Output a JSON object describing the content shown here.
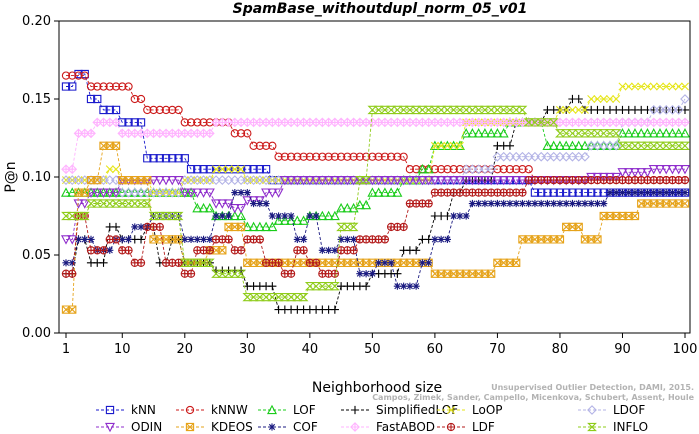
{
  "chart_data": {
    "type": "line",
    "title": "SpamBase_withoutdupl_norm_05_v01",
    "xlabel": "Neighborhood size",
    "ylabel": "P@n",
    "xlim": [
      0,
      100
    ],
    "ylim": [
      0,
      0.2
    ],
    "xticks": [
      "1",
      "10",
      "20",
      "30",
      "40",
      "50",
      "60",
      "70",
      "80",
      "90",
      "100"
    ],
    "yticks": [
      "0.00",
      "0.05",
      "0.10",
      "0.15",
      "0.20"
    ],
    "grid": false,
    "legend_position": "bottom",
    "series": [
      {
        "name": "kNN",
        "color": "#1a1acc",
        "marker": "square",
        "points": [
          [
            1,
            0.158
          ],
          [
            3,
            0.166
          ],
          [
            5,
            0.15
          ],
          [
            7,
            0.143
          ],
          [
            9,
            0.143
          ],
          [
            10,
            0.135
          ],
          [
            12,
            0.135
          ],
          [
            14,
            0.112
          ],
          [
            20,
            0.112
          ],
          [
            21,
            0.105
          ],
          [
            33,
            0.105
          ],
          [
            34,
            0.098
          ],
          [
            60,
            0.098
          ],
          [
            70,
            0.098
          ],
          [
            75,
            0.098
          ],
          [
            76,
            0.09
          ],
          [
            100,
            0.09
          ]
        ]
      },
      {
        "name": "kNNW",
        "color": "#cc1a1a",
        "marker": "circle",
        "points": [
          [
            1,
            0.165
          ],
          [
            4,
            0.165
          ],
          [
            5,
            0.158
          ],
          [
            9,
            0.158
          ],
          [
            12,
            0.15
          ],
          [
            14,
            0.143
          ],
          [
            18,
            0.143
          ],
          [
            20,
            0.135
          ],
          [
            27,
            0.135
          ],
          [
            28,
            0.128
          ],
          [
            30,
            0.128
          ],
          [
            31,
            0.12
          ],
          [
            34,
            0.12
          ],
          [
            35,
            0.113
          ],
          [
            55,
            0.113
          ],
          [
            56,
            0.105
          ],
          [
            75,
            0.105
          ],
          [
            76,
            0.098
          ],
          [
            100,
            0.098
          ]
        ]
      },
      {
        "name": "LOF",
        "color": "#1acc1a",
        "marker": "triangle-up",
        "points": [
          [
            1,
            0.09
          ],
          [
            5,
            0.09
          ],
          [
            10,
            0.09
          ],
          [
            15,
            0.09
          ],
          [
            20,
            0.09
          ],
          [
            22,
            0.08
          ],
          [
            25,
            0.075
          ],
          [
            30,
            0.068
          ],
          [
            35,
            0.072
          ],
          [
            40,
            0.075
          ],
          [
            45,
            0.08
          ],
          [
            48,
            0.082
          ],
          [
            50,
            0.09
          ],
          [
            55,
            0.098
          ],
          [
            58,
            0.105
          ],
          [
            60,
            0.12
          ],
          [
            65,
            0.128
          ],
          [
            70,
            0.128
          ],
          [
            72,
            0.135
          ],
          [
            75,
            0.135
          ],
          [
            78,
            0.12
          ],
          [
            85,
            0.12
          ],
          [
            90,
            0.128
          ],
          [
            100,
            0.128
          ]
        ]
      },
      {
        "name": "SimplifiedLOF",
        "color": "#000000",
        "marker": "plus",
        "points": [
          [
            1,
            0.038
          ],
          [
            3,
            0.06
          ],
          [
            5,
            0.045
          ],
          [
            8,
            0.068
          ],
          [
            10,
            0.06
          ],
          [
            14,
            0.068
          ],
          [
            16,
            0.045
          ],
          [
            18,
            0.06
          ],
          [
            20,
            0.045
          ],
          [
            25,
            0.04
          ],
          [
            30,
            0.03
          ],
          [
            35,
            0.015
          ],
          [
            42,
            0.015
          ],
          [
            45,
            0.03
          ],
          [
            50,
            0.038
          ],
          [
            55,
            0.053
          ],
          [
            58,
            0.06
          ],
          [
            60,
            0.075
          ],
          [
            63,
            0.09
          ],
          [
            65,
            0.098
          ],
          [
            70,
            0.12
          ],
          [
            73,
            0.135
          ],
          [
            76,
            0.135
          ],
          [
            78,
            0.143
          ],
          [
            82,
            0.15
          ],
          [
            84,
            0.143
          ],
          [
            100,
            0.143
          ]
        ]
      },
      {
        "name": "LoOP",
        "color": "#e6e61a",
        "marker": "x",
        "points": [
          [
            1,
            0.098
          ],
          [
            5,
            0.098
          ],
          [
            8,
            0.105
          ],
          [
            10,
            0.098
          ],
          [
            15,
            0.09
          ],
          [
            20,
            0.098
          ],
          [
            25,
            0.105
          ],
          [
            30,
            0.098
          ],
          [
            35,
            0.098
          ],
          [
            40,
            0.098
          ],
          [
            45,
            0.098
          ],
          [
            50,
            0.098
          ],
          [
            55,
            0.098
          ],
          [
            60,
            0.12
          ],
          [
            65,
            0.135
          ],
          [
            70,
            0.135
          ],
          [
            75,
            0.135
          ],
          [
            80,
            0.143
          ],
          [
            85,
            0.15
          ],
          [
            90,
            0.158
          ],
          [
            95,
            0.158
          ],
          [
            100,
            0.158
          ]
        ]
      },
      {
        "name": "LDOF",
        "color": "#b3b3e6",
        "marker": "diamond",
        "points": [
          [
            1,
            0.098
          ],
          [
            5,
            0.098
          ],
          [
            10,
            0.09
          ],
          [
            15,
            0.09
          ],
          [
            20,
            0.098
          ],
          [
            25,
            0.098
          ],
          [
            30,
            0.098
          ],
          [
            35,
            0.098
          ],
          [
            40,
            0.098
          ],
          [
            45,
            0.098
          ],
          [
            50,
            0.098
          ],
          [
            55,
            0.098
          ],
          [
            60,
            0.098
          ],
          [
            65,
            0.105
          ],
          [
            70,
            0.113
          ],
          [
            75,
            0.113
          ],
          [
            80,
            0.113
          ],
          [
            85,
            0.12
          ],
          [
            90,
            0.135
          ],
          [
            95,
            0.143
          ],
          [
            100,
            0.15
          ]
        ]
      },
      {
        "name": "ODIN",
        "color": "#8f2ecc",
        "marker": "triangle-down",
        "points": [
          [
            1,
            0.06
          ],
          [
            3,
            0.083
          ],
          [
            5,
            0.09
          ],
          [
            8,
            0.09
          ],
          [
            10,
            0.098
          ],
          [
            15,
            0.098
          ],
          [
            18,
            0.098
          ],
          [
            20,
            0.09
          ],
          [
            25,
            0.083
          ],
          [
            28,
            0.08
          ],
          [
            30,
            0.085
          ],
          [
            33,
            0.09
          ],
          [
            36,
            0.098
          ],
          [
            40,
            0.098
          ],
          [
            50,
            0.098
          ],
          [
            60,
            0.098
          ],
          [
            65,
            0.098
          ],
          [
            70,
            0.098
          ],
          [
            75,
            0.098
          ],
          [
            80,
            0.098
          ],
          [
            85,
            0.1
          ],
          [
            90,
            0.103
          ],
          [
            95,
            0.105
          ],
          [
            100,
            0.105
          ]
        ]
      },
      {
        "name": "KDEOS",
        "color": "#e6a31a",
        "marker": "square-cross",
        "points": [
          [
            1,
            0.015
          ],
          [
            3,
            0.09
          ],
          [
            5,
            0.098
          ],
          [
            7,
            0.12
          ],
          [
            10,
            0.098
          ],
          [
            15,
            0.06
          ],
          [
            20,
            0.045
          ],
          [
            24,
            0.053
          ],
          [
            27,
            0.068
          ],
          [
            30,
            0.045
          ],
          [
            35,
            0.045
          ],
          [
            40,
            0.045
          ],
          [
            45,
            0.045
          ],
          [
            50,
            0.045
          ],
          [
            55,
            0.045
          ],
          [
            60,
            0.038
          ],
          [
            65,
            0.038
          ],
          [
            70,
            0.045
          ],
          [
            74,
            0.06
          ],
          [
            78,
            0.06
          ],
          [
            81,
            0.068
          ],
          [
            84,
            0.06
          ],
          [
            87,
            0.075
          ],
          [
            90,
            0.075
          ],
          [
            93,
            0.083
          ],
          [
            100,
            0.083
          ]
        ]
      },
      {
        "name": "COF",
        "color": "#1a1a80",
        "marker": "asterisk",
        "points": [
          [
            1,
            0.045
          ],
          [
            3,
            0.06
          ],
          [
            6,
            0.053
          ],
          [
            9,
            0.06
          ],
          [
            12,
            0.068
          ],
          [
            15,
            0.075
          ],
          [
            20,
            0.06
          ],
          [
            25,
            0.075
          ],
          [
            28,
            0.09
          ],
          [
            31,
            0.083
          ],
          [
            34,
            0.075
          ],
          [
            38,
            0.06
          ],
          [
            40,
            0.075
          ],
          [
            42,
            0.053
          ],
          [
            45,
            0.06
          ],
          [
            48,
            0.038
          ],
          [
            51,
            0.045
          ],
          [
            54,
            0.03
          ],
          [
            58,
            0.045
          ],
          [
            60,
            0.06
          ],
          [
            63,
            0.075
          ],
          [
            66,
            0.083
          ],
          [
            70,
            0.083
          ],
          [
            75,
            0.083
          ],
          [
            80,
            0.083
          ],
          [
            85,
            0.083
          ],
          [
            88,
            0.09
          ],
          [
            92,
            0.09
          ],
          [
            100,
            0.09
          ]
        ]
      },
      {
        "name": "FastABOD",
        "color": "#ffb3ff",
        "marker": "diamond-plus",
        "points": [
          [
            1,
            0.105
          ],
          [
            3,
            0.128
          ],
          [
            6,
            0.135
          ],
          [
            10,
            0.128
          ],
          [
            15,
            0.128
          ],
          [
            20,
            0.128
          ],
          [
            25,
            0.135
          ],
          [
            30,
            0.135
          ],
          [
            35,
            0.135
          ],
          [
            40,
            0.135
          ],
          [
            45,
            0.135
          ],
          [
            50,
            0.135
          ],
          [
            55,
            0.135
          ],
          [
            60,
            0.135
          ],
          [
            65,
            0.135
          ],
          [
            70,
            0.135
          ],
          [
            75,
            0.135
          ],
          [
            80,
            0.135
          ],
          [
            85,
            0.135
          ],
          [
            90,
            0.135
          ],
          [
            95,
            0.135
          ],
          [
            100,
            0.135
          ]
        ]
      },
      {
        "name": "LDF",
        "color": "#b31a1a",
        "marker": "circle-plus",
        "points": [
          [
            1,
            0.038
          ],
          [
            3,
            0.075
          ],
          [
            5,
            0.053
          ],
          [
            8,
            0.06
          ],
          [
            10,
            0.053
          ],
          [
            12,
            0.045
          ],
          [
            14,
            0.068
          ],
          [
            17,
            0.045
          ],
          [
            20,
            0.038
          ],
          [
            22,
            0.053
          ],
          [
            25,
            0.06
          ],
          [
            28,
            0.053
          ],
          [
            30,
            0.06
          ],
          [
            33,
            0.045
          ],
          [
            36,
            0.038
          ],
          [
            38,
            0.053
          ],
          [
            40,
            0.045
          ],
          [
            42,
            0.038
          ],
          [
            45,
            0.053
          ],
          [
            48,
            0.06
          ],
          [
            50,
            0.06
          ],
          [
            53,
            0.068
          ],
          [
            56,
            0.083
          ],
          [
            60,
            0.09
          ],
          [
            65,
            0.09
          ],
          [
            70,
            0.09
          ],
          [
            75,
            0.098
          ],
          [
            80,
            0.098
          ],
          [
            85,
            0.098
          ],
          [
            90,
            0.098
          ],
          [
            95,
            0.098
          ],
          [
            100,
            0.098
          ]
        ]
      },
      {
        "name": "INFLO",
        "color": "#8fcc1a",
        "marker": "hourglass",
        "points": [
          [
            1,
            0.075
          ],
          [
            5,
            0.083
          ],
          [
            10,
            0.083
          ],
          [
            15,
            0.075
          ],
          [
            20,
            0.045
          ],
          [
            25,
            0.038
          ],
          [
            30,
            0.023
          ],
          [
            35,
            0.023
          ],
          [
            40,
            0.03
          ],
          [
            45,
            0.068
          ],
          [
            48,
            0.098
          ],
          [
            50,
            0.143
          ],
          [
            55,
            0.143
          ],
          [
            58,
            0.143
          ],
          [
            62,
            0.143
          ],
          [
            65,
            0.143
          ],
          [
            70,
            0.143
          ],
          [
            75,
            0.135
          ],
          [
            80,
            0.128
          ],
          [
            85,
            0.128
          ],
          [
            90,
            0.12
          ],
          [
            95,
            0.12
          ],
          [
            100,
            0.12
          ]
        ]
      }
    ]
  },
  "watermark": {
    "line1": "Unsupervised Outlier Detection, DAMI, 2015.",
    "line2": "Campos, Zimek, Sander, Campello, Micenkova, Schubert, Assent, Houle"
  }
}
